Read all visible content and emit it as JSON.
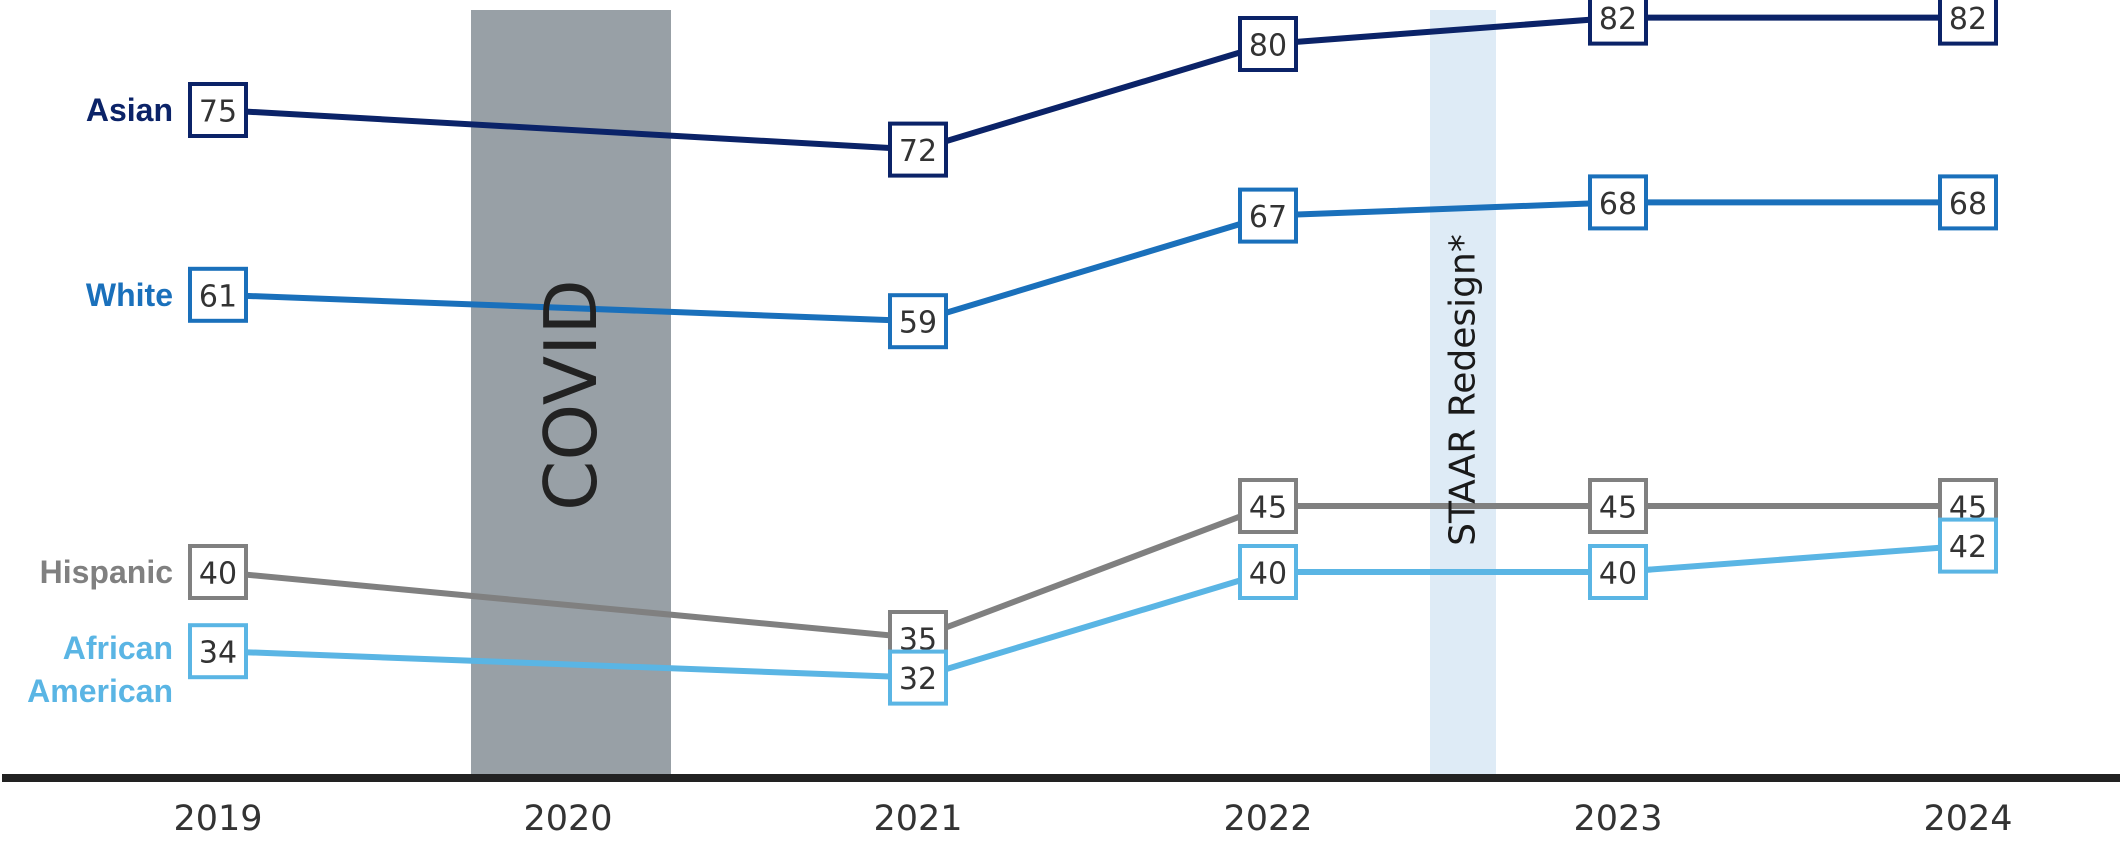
{
  "chart_data": {
    "type": "line",
    "x": [
      "2019",
      "2020",
      "2021",
      "2022",
      "2023",
      "2024"
    ],
    "ylim": [
      0,
      100
    ],
    "grid": false,
    "series": [
      {
        "name": "Asian",
        "label_lines": [
          "Asian"
        ],
        "color": "#0b2368",
        "values": [
          75,
          null,
          72,
          80,
          82,
          82
        ],
        "labels": [
          "75",
          "",
          "72",
          "80",
          "82",
          "82"
        ]
      },
      {
        "name": "White",
        "label_lines": [
          "White"
        ],
        "color": "#1a70bb",
        "values": [
          61,
          null,
          59,
          67,
          68,
          68
        ],
        "labels": [
          "61",
          "",
          "59",
          "67",
          "68",
          "68"
        ]
      },
      {
        "name": "Hispanic",
        "label_lines": [
          "Hispanic"
        ],
        "color": "#808080",
        "values": [
          40,
          null,
          35,
          45,
          45,
          45
        ],
        "labels": [
          "40",
          "",
          "35",
          "45",
          "45",
          "45"
        ]
      },
      {
        "name": "African American",
        "label_lines": [
          "African",
          "American"
        ],
        "color": "#5ab5e4",
        "values": [
          34,
          null,
          32,
          40,
          40,
          42
        ],
        "labels": [
          "34",
          "",
          "32",
          "40",
          "40",
          "42"
        ]
      }
    ],
    "annotations": [
      {
        "text": "COVID",
        "at": "2020",
        "color": "#98a0a6"
      },
      {
        "text": "STAAR Redesign*",
        "between": [
          "2022",
          "2023"
        ],
        "color": "#deebf6"
      }
    ],
    "axis_color": "#222222"
  }
}
